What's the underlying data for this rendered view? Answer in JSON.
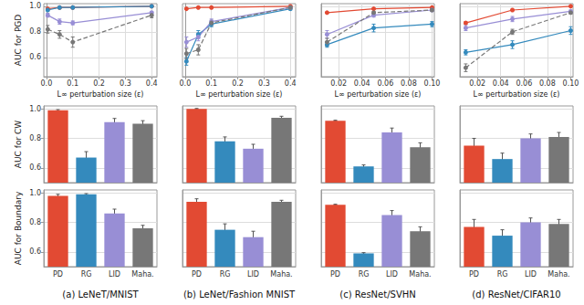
{
  "chart_data": [
    {
      "type": "line",
      "ylabel": "AUC for PGD",
      "xlabel": "L∞ perturbation size (ε)",
      "grid": true,
      "tick_labels": true,
      "xlim": [
        -0.01,
        0.42
      ],
      "xticks": [
        {
          "value": 0,
          "label": "0.0"
        },
        0.1,
        0.2,
        0.3,
        0.4
      ],
      "ylim": [
        0.45,
        1.02
      ],
      "yticks": [
        0.6,
        0.8,
        {
          "value": 1,
          "label": "1.0"
        }
      ],
      "x": [
        0.005,
        0.05,
        0.1,
        0.4
      ],
      "series": [
        {
          "name": "PD",
          "color": "#e24a33",
          "marker": "circle",
          "line_style": "solid",
          "values": [
            0.98,
            0.99,
            0.99,
            1.0
          ],
          "errors": [
            0.004,
            0.003,
            0.003,
            0.002
          ]
        },
        {
          "name": "RG",
          "color": "#348abd",
          "marker": "circle",
          "line_style": "solid",
          "values": [
            0.97,
            0.99,
            0.99,
            1.0
          ],
          "errors": [
            0.006,
            0.004,
            0.004,
            0.002
          ]
        },
        {
          "name": "LID",
          "color": "#988ed5",
          "marker": "circle",
          "line_style": "solid",
          "values": [
            0.93,
            0.88,
            0.87,
            0.95
          ],
          "errors": [
            0.015,
            0.02,
            0.015,
            0.01
          ]
        },
        {
          "name": "Maha.",
          "color": "#777777",
          "marker": "circle",
          "line_style": "dashed",
          "values": [
            0.82,
            0.78,
            0.72,
            0.93
          ],
          "errors": [
            0.03,
            0.03,
            0.04,
            0.02
          ]
        }
      ]
    },
    {
      "type": "line",
      "xlabel": "L∞ perturbation size (ε)",
      "grid": true,
      "tick_labels": "x",
      "xlim": [
        -0.01,
        0.42
      ],
      "xticks": [
        {
          "value": 0,
          "label": "0.0"
        },
        0.1,
        0.2,
        0.3,
        0.4
      ],
      "ylim": [
        0.45,
        1.02
      ],
      "yticks": [
        0.6,
        0.8,
        {
          "value": 1,
          "label": "1.0"
        }
      ],
      "x": [
        0.005,
        0.05,
        0.1,
        0.4
      ],
      "series": [
        {
          "name": "PD",
          "color": "#e24a33",
          "marker": "circle",
          "line_style": "solid",
          "values": [
            0.98,
            0.99,
            0.99,
            1.0
          ],
          "errors": [
            0.004,
            0.003,
            0.003,
            0.002
          ]
        },
        {
          "name": "RG",
          "color": "#348abd",
          "marker": "circle",
          "line_style": "solid",
          "values": [
            0.57,
            0.78,
            0.86,
            0.98
          ],
          "errors": [
            0.03,
            0.03,
            0.02,
            0.01
          ]
        },
        {
          "name": "LID",
          "color": "#988ed5",
          "marker": "circle",
          "line_style": "solid",
          "values": [
            0.72,
            0.76,
            0.88,
            0.99
          ],
          "errors": [
            0.04,
            0.03,
            0.02,
            0.01
          ]
        },
        {
          "name": "Maha.",
          "color": "#777777",
          "marker": "circle",
          "line_style": "dashed",
          "values": [
            0.63,
            0.66,
            0.87,
            0.99
          ],
          "errors": [
            0.04,
            0.04,
            0.02,
            0.01
          ]
        }
      ]
    },
    {
      "type": "line",
      "xlabel": "L∞ perturbation size (ε)",
      "grid": true,
      "tick_labels": "x",
      "xlim": [
        0.005,
        0.102
      ],
      "xticks": [
        0.02,
        0.04,
        0.06,
        0.08,
        {
          "value": 0.1,
          "label": "0.10"
        }
      ],
      "ylim": [
        0.45,
        1.02
      ],
      "yticks": [
        0.6,
        0.8,
        {
          "value": 1,
          "label": "1.0"
        }
      ],
      "x": [
        0.01,
        0.05,
        0.1
      ],
      "series": [
        {
          "name": "PD",
          "color": "#e24a33",
          "marker": "circle",
          "line_style": "solid",
          "values": [
            0.95,
            0.98,
            0.99
          ],
          "errors": [
            0.005,
            0.004,
            0.003
          ]
        },
        {
          "name": "RG",
          "color": "#348abd",
          "marker": "circle",
          "line_style": "solid",
          "values": [
            0.7,
            0.83,
            0.86
          ],
          "errors": [
            0.02,
            0.03,
            0.02
          ]
        },
        {
          "name": "LID",
          "color": "#988ed5",
          "marker": "circle",
          "line_style": "solid",
          "values": [
            0.78,
            0.93,
            0.97
          ],
          "errors": [
            0.03,
            0.015,
            0.01
          ]
        },
        {
          "name": "Maha.",
          "color": "#777777",
          "marker": "circle",
          "line_style": "dashed",
          "values": [
            0.72,
            0.95,
            0.97
          ],
          "errors": [
            0.03,
            0.01,
            0.01
          ]
        }
      ]
    },
    {
      "type": "line",
      "xlabel": "L∞ perturbation size (ε)",
      "grid": true,
      "tick_labels": "x",
      "xlim": [
        0.005,
        0.102
      ],
      "xticks": [
        0.02,
        0.04,
        0.06,
        0.08,
        {
          "value": 0.1,
          "label": "0.10"
        }
      ],
      "ylim": [
        0.45,
        1.02
      ],
      "yticks": [
        0.6,
        0.8,
        {
          "value": 1,
          "label": "1.0"
        }
      ],
      "x": [
        0.01,
        0.05,
        0.1
      ],
      "series": [
        {
          "name": "PD",
          "color": "#e24a33",
          "marker": "circle",
          "line_style": "solid",
          "values": [
            0.87,
            0.97,
            1.0
          ],
          "errors": [
            0.01,
            0.005,
            0.003
          ]
        },
        {
          "name": "RG",
          "color": "#348abd",
          "marker": "circle",
          "line_style": "solid",
          "values": [
            0.64,
            0.7,
            0.81
          ],
          "errors": [
            0.02,
            0.03,
            0.03
          ]
        },
        {
          "name": "LID",
          "color": "#988ed5",
          "marker": "circle",
          "line_style": "solid",
          "values": [
            0.83,
            0.9,
            0.96
          ],
          "errors": [
            0.02,
            0.02,
            0.01
          ]
        },
        {
          "name": "Maha.",
          "color": "#777777",
          "marker": "circle",
          "line_style": "dashed",
          "values": [
            0.52,
            0.8,
            0.95
          ],
          "errors": [
            0.03,
            0.02,
            0.01
          ]
        }
      ]
    },
    {
      "type": "bar",
      "ylabel": "AUC for CW",
      "grid": true,
      "tick_labels": "y",
      "categories": [
        "PD",
        "RG",
        "LID",
        "Maha."
      ],
      "colors": [
        "#e24a33",
        "#348abd",
        "#988ed5",
        "#777777"
      ],
      "ylim": [
        0.5,
        1.02
      ],
      "yticks": [
        0.6,
        0.8,
        {
          "value": 1,
          "label": "1.0"
        }
      ],
      "values": [
        0.99,
        0.67,
        0.91,
        0.9
      ],
      "errors": [
        0.005,
        0.04,
        0.025,
        0.02
      ]
    },
    {
      "type": "bar",
      "grid": true,
      "tick_labels": false,
      "categories": [
        "PD",
        "RG",
        "LID",
        "Maha."
      ],
      "colors": [
        "#e24a33",
        "#348abd",
        "#988ed5",
        "#777777"
      ],
      "ylim": [
        0.5,
        1.02
      ],
      "yticks": [
        0.6,
        0.8,
        {
          "value": 1,
          "label": "1.0"
        }
      ],
      "values": [
        1.0,
        0.78,
        0.73,
        0.94
      ],
      "errors": [
        0.003,
        0.03,
        0.03,
        0.01
      ]
    },
    {
      "type": "bar",
      "grid": true,
      "tick_labels": false,
      "categories": [
        "PD",
        "RG",
        "LID",
        "Maha."
      ],
      "colors": [
        "#e24a33",
        "#348abd",
        "#988ed5",
        "#777777"
      ],
      "ylim": [
        0.5,
        1.02
      ],
      "yticks": [
        0.6,
        0.8,
        {
          "value": 1,
          "label": "1.0"
        }
      ],
      "values": [
        0.92,
        0.61,
        0.84,
        0.74
      ],
      "errors": [
        0.003,
        0.01,
        0.03,
        0.03
      ]
    },
    {
      "type": "bar",
      "grid": true,
      "tick_labels": false,
      "categories": [
        "PD",
        "RG",
        "LID",
        "Maha."
      ],
      "colors": [
        "#e24a33",
        "#348abd",
        "#988ed5",
        "#777777"
      ],
      "ylim": [
        0.5,
        1.02
      ],
      "yticks": [
        0.6,
        0.8,
        {
          "value": 1,
          "label": "1.0"
        }
      ],
      "values": [
        0.75,
        0.66,
        0.8,
        0.81
      ],
      "errors": [
        0.05,
        0.04,
        0.03,
        0.03
      ]
    },
    {
      "type": "bar",
      "ylabel": "AUC for Boundary",
      "title": "(a) LeNeT/MNIST",
      "grid": true,
      "tick_labels": true,
      "categories": [
        "PD",
        "RG",
        "LID",
        "Maha."
      ],
      "colors": [
        "#e24a33",
        "#348abd",
        "#988ed5",
        "#777777"
      ],
      "ylim": [
        0.5,
        1.02
      ],
      "yticks": [
        0.6,
        0.8,
        {
          "value": 1,
          "label": "1.0"
        }
      ],
      "values": [
        0.98,
        0.99,
        0.86,
        0.76
      ],
      "errors": [
        0.01,
        0.005,
        0.03,
        0.02
      ]
    },
    {
      "type": "bar",
      "title": "(b) LeNet/Fashion MNIST",
      "grid": true,
      "tick_labels": "x",
      "categories": [
        "PD",
        "RG",
        "LID",
        "Maha."
      ],
      "colors": [
        "#e24a33",
        "#348abd",
        "#988ed5",
        "#777777"
      ],
      "ylim": [
        0.5,
        1.02
      ],
      "yticks": [
        0.6,
        0.8,
        {
          "value": 1,
          "label": "1.0"
        }
      ],
      "values": [
        0.94,
        0.75,
        0.7,
        0.94
      ],
      "errors": [
        0.02,
        0.04,
        0.04,
        0.01
      ]
    },
    {
      "type": "bar",
      "title": "(c) ResNet/SVHN",
      "grid": true,
      "tick_labels": "x",
      "categories": [
        "PD",
        "RG",
        "LID",
        "Maha."
      ],
      "colors": [
        "#e24a33",
        "#348abd",
        "#988ed5",
        "#777777"
      ],
      "ylim": [
        0.5,
        1.02
      ],
      "yticks": [
        0.6,
        0.8,
        {
          "value": 1,
          "label": "1.0"
        }
      ],
      "values": [
        0.92,
        0.59,
        0.85,
        0.74
      ],
      "errors": [
        0.003,
        0.005,
        0.03,
        0.03
      ]
    },
    {
      "type": "bar",
      "title": "(d) ResNet/CIFAR10",
      "grid": true,
      "tick_labels": "x",
      "categories": [
        "PD",
        "RG",
        "LID",
        "Maha."
      ],
      "colors": [
        "#e24a33",
        "#348abd",
        "#988ed5",
        "#777777"
      ],
      "ylim": [
        0.5,
        1.02
      ],
      "yticks": [
        0.6,
        0.8,
        {
          "value": 1,
          "label": "1.0"
        }
      ],
      "values": [
        0.77,
        0.71,
        0.8,
        0.79
      ],
      "errors": [
        0.05,
        0.04,
        0.03,
        0.03
      ]
    }
  ]
}
